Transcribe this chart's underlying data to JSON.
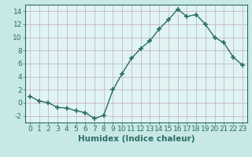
{
  "x": [
    0,
    1,
    2,
    3,
    4,
    5,
    6,
    7,
    8,
    9,
    10,
    11,
    12,
    13,
    14,
    15,
    16,
    17,
    18,
    19,
    20,
    21,
    22,
    23
  ],
  "y": [
    1,
    0.3,
    0.0,
    -0.7,
    -0.8,
    -1.2,
    -1.5,
    -2.4,
    -1.9,
    2.0,
    4.5,
    6.8,
    8.3,
    9.5,
    11.3,
    12.7,
    14.3,
    13.2,
    13.5,
    12.0,
    10.0,
    9.2,
    7.0,
    5.8
  ],
  "line_color": "#2e7d6e",
  "marker": "+",
  "marker_size": 4,
  "linewidth": 1.0,
  "xlabel": "Humidex (Indice chaleur)",
  "xlim": [
    -0.5,
    23.5
  ],
  "ylim": [
    -3,
    15
  ],
  "yticks": [
    -2,
    0,
    2,
    4,
    6,
    8,
    10,
    12,
    14
  ],
  "xticks": [
    0,
    1,
    2,
    3,
    4,
    5,
    6,
    7,
    8,
    9,
    10,
    11,
    12,
    13,
    14,
    15,
    16,
    17,
    18,
    19,
    20,
    21,
    22,
    23
  ],
  "bg_color": "#e0f4f4",
  "outer_bg": "#c8e8e8",
  "grid_color": "#c8b8c8",
  "line_color_dark": "#2a6e62",
  "xlabel_fontsize": 7.5,
  "tick_fontsize": 6.5
}
